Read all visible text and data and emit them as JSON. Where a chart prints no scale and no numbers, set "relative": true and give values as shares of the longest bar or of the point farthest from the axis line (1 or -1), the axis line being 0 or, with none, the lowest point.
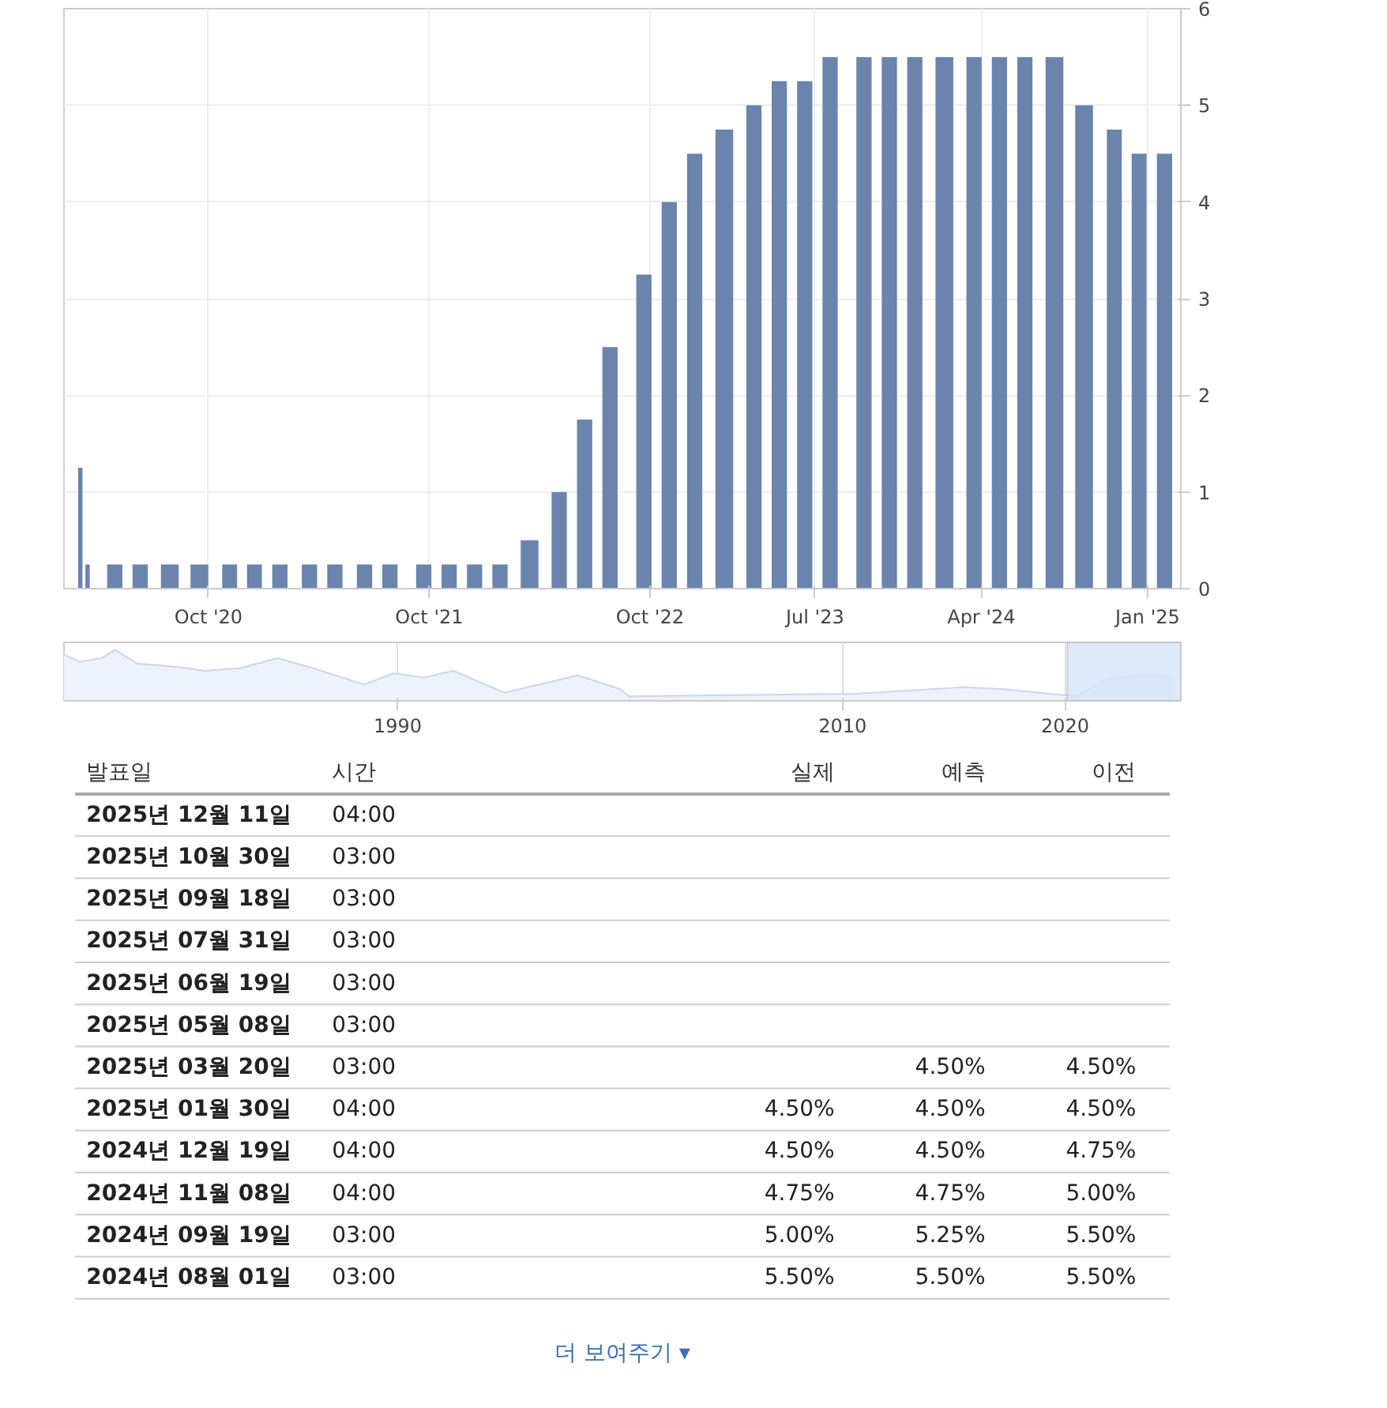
{
  "chart_data": [
    {
      "type": "bar",
      "color": "#6a84ad",
      "grid": true,
      "x": [
        "2020-03-03",
        "2020-03-15",
        "2020-04-29",
        "2020-06-10",
        "2020-07-29",
        "2020-09-16",
        "2020-11-05",
        "2020-12-16",
        "2021-01-27",
        "2021-03-17",
        "2021-04-28",
        "2021-06-16",
        "2021-07-28",
        "2021-09-22",
        "2021-11-03",
        "2021-12-15",
        "2022-01-26",
        "2022-03-16",
        "2022-05-04",
        "2022-06-15",
        "2022-07-27",
        "2022-09-21",
        "2022-11-02",
        "2022-12-14",
        "2023-02-01",
        "2023-03-22",
        "2023-05-03",
        "2023-06-14",
        "2023-07-26",
        "2023-09-20",
        "2023-11-01",
        "2023-12-13",
        "2024-01-31",
        "2024-03-20",
        "2024-05-01",
        "2024-06-12",
        "2024-07-31",
        "2024-09-18",
        "2024-11-07",
        "2024-12-18",
        "2025-01-29"
      ],
      "values": [
        1.25,
        0.25,
        0.25,
        0.25,
        0.25,
        0.25,
        0.25,
        0.25,
        0.25,
        0.25,
        0.25,
        0.25,
        0.25,
        0.25,
        0.25,
        0.25,
        0.25,
        0.5,
        1.0,
        1.75,
        2.5,
        3.25,
        4.0,
        4.5,
        4.75,
        5.0,
        5.25,
        5.25,
        5.5,
        5.5,
        5.5,
        5.5,
        5.5,
        5.5,
        5.5,
        5.5,
        5.5,
        5.0,
        4.75,
        4.5,
        4.5
      ],
      "xlim": [
        "2020-02-05",
        "2025-02-25"
      ],
      "xticks": [
        {
          "value": "2020-10-01",
          "label": "Oct '20"
        },
        {
          "value": "2021-10-01",
          "label": "Oct '21"
        },
        {
          "value": "2022-10-01",
          "label": "Oct '22"
        },
        {
          "value": "2023-07-01",
          "label": "Jul '23"
        },
        {
          "value": "2024-04-01",
          "label": "Apr '24"
        },
        {
          "value": "2025-01-01",
          "label": "Jan '25"
        }
      ],
      "ylim": [
        0,
        6
      ],
      "yticks": [
        0,
        1,
        2,
        3,
        4,
        5,
        6
      ]
    },
    {
      "type": "area",
      "relative": true,
      "color": "#c9d6ea",
      "grid": "x",
      "x": [
        1975.0,
        1975.7,
        1976.7,
        1977.3,
        1978.3,
        1979.3,
        1980.6,
        1981.3,
        1982.9,
        1984.6,
        1986.2,
        1988.5,
        1989.8,
        1991.2,
        1992.5,
        1994.8,
        1998.1,
        2000.0,
        2000.4,
        2010.6,
        2015.5,
        2017.2,
        2020.5,
        2021.8,
        2023.1,
        2024.4,
        2024.9
      ],
      "values": [
        0.91,
        0.77,
        0.84,
        1.0,
        0.73,
        0.7,
        0.64,
        0.59,
        0.64,
        0.84,
        0.64,
        0.32,
        0.54,
        0.46,
        0.59,
        0.16,
        0.5,
        0.23,
        0.09,
        0.14,
        0.27,
        0.23,
        0.09,
        0.41,
        0.5,
        0.5,
        0.41
      ],
      "xlim": [
        1975,
        2025.2
      ],
      "xticks": [
        1990,
        2010,
        2020
      ],
      "bands": [
        {
          "axis": "x",
          "from": 2020.1,
          "to": 2025.2,
          "color": "#d6e3f7"
        }
      ]
    },
    {
      "type": "other",
      "categories": [
        "발표일",
        "시간",
        "실제",
        "예측",
        "이전"
      ],
      "cell_labels": [
        [
          "2025년 12월 11일",
          "04:00",
          null,
          null,
          null
        ],
        [
          "2025년 10월 30일",
          "03:00",
          null,
          null,
          null
        ],
        [
          "2025년 09월 18일",
          "03:00",
          null,
          null,
          null
        ],
        [
          "2025년 07월 31일",
          "03:00",
          null,
          null,
          null
        ],
        [
          "2025년 06월 19일",
          "03:00",
          null,
          null,
          null
        ],
        [
          "2025년 05월 08일",
          "03:00",
          null,
          null,
          null
        ],
        [
          "2025년 03월 20일",
          "03:00",
          null,
          "4.50%",
          "4.50%"
        ],
        [
          "2025년 01월 30일",
          "04:00",
          "4.50%",
          "4.50%",
          "4.50%"
        ],
        [
          "2024년 12월 19일",
          "04:00",
          "4.50%",
          "4.50%",
          "4.75%"
        ],
        [
          "2024년 11월 08일",
          "04:00",
          "4.75%",
          "4.75%",
          "5.00%"
        ],
        [
          "2024년 09월 19일",
          "03:00",
          "5.00%",
          "5.25%",
          "5.50%"
        ],
        [
          "2024년 08월 01일",
          "03:00",
          "5.50%",
          "5.50%",
          "5.50%"
        ]
      ],
      "annotations": [
        "더 보여주기 ▾"
      ]
    }
  ]
}
